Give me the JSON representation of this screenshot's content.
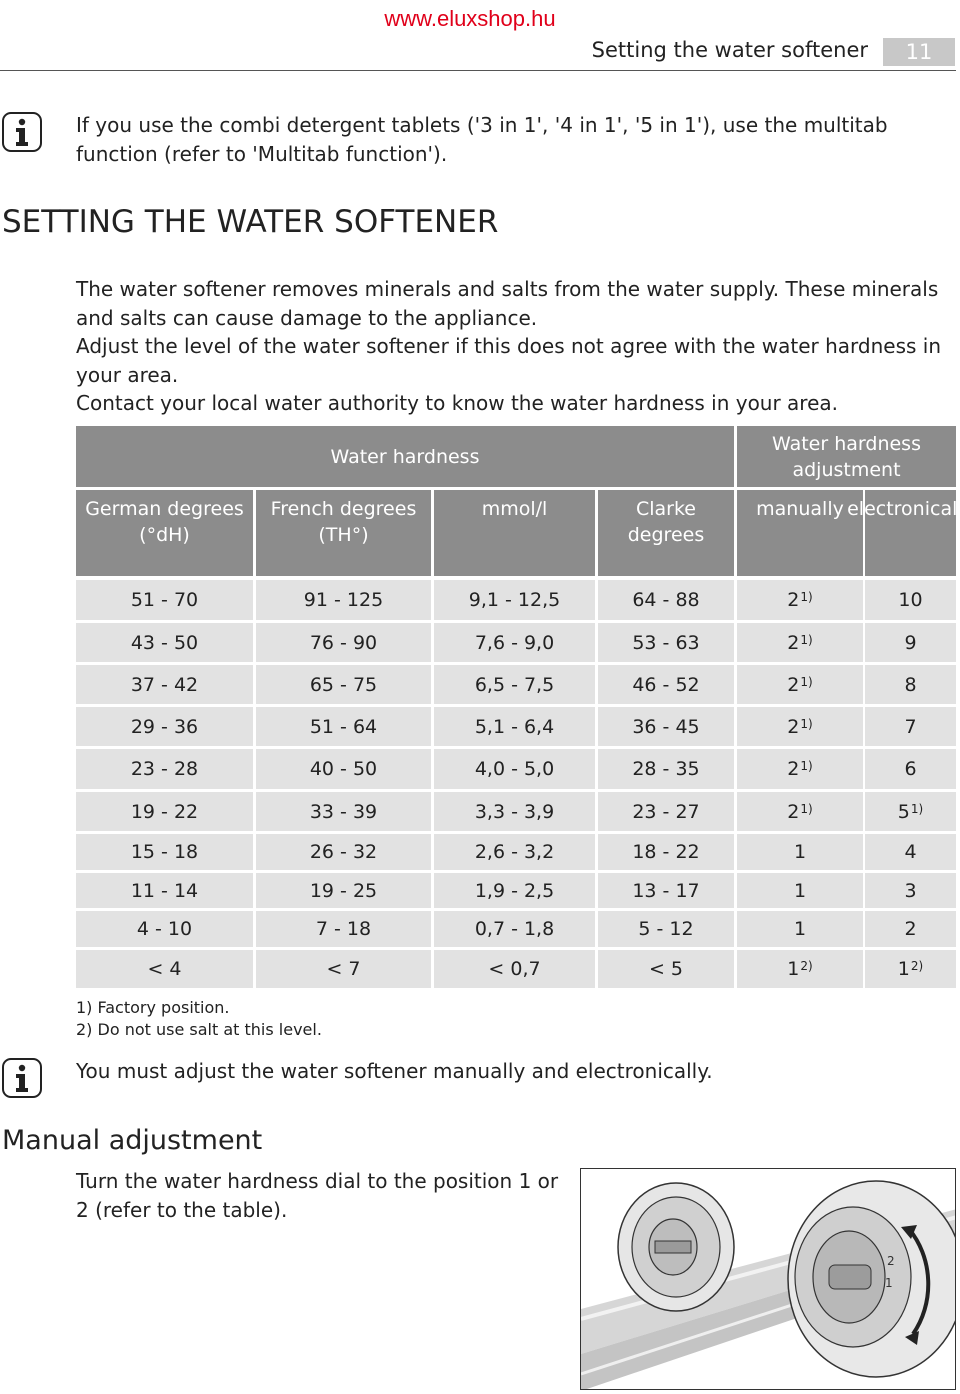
{
  "watermark": "www.eluxshop.hu",
  "header": {
    "section_title": "Setting the water softener",
    "page_number": "11"
  },
  "note1": "If you use the combi detergent tablets ('3 in 1', '4 in 1', '5 in 1'), use the multitab function (refer to 'Multitab function').",
  "heading": "SETTING THE WATER SOFTENER",
  "intro": [
    "The water softener removes minerals and salts from the water supply. These minerals and salts can cause damage to the appliance.",
    "Adjust the level of the water softener if this does not agree with the water hardness in your area.",
    "Contact your local water authority to know the water hardness in your area."
  ],
  "table": {
    "group_water_hardness": "Water hardness",
    "group_adjustment": "Water hardness adjustment",
    "columns": [
      "German degrees (°dH)",
      "French degrees (TH°)",
      "mmol/l",
      "Clarke degrees",
      "manually",
      "electronically"
    ],
    "rows": [
      {
        "german": "51 - 70",
        "french": "91 - 125",
        "mmol": "9,1 - 12,5",
        "clarke": "64 - 88",
        "manual": "2",
        "manual_note": "1)",
        "electronic": "10",
        "electronic_note": ""
      },
      {
        "german": "43 - 50",
        "french": "76 - 90",
        "mmol": "7,6 - 9,0",
        "clarke": "53 - 63",
        "manual": "2",
        "manual_note": "1)",
        "electronic": "9",
        "electronic_note": ""
      },
      {
        "german": "37 - 42",
        "french": "65 - 75",
        "mmol": "6,5 - 7,5",
        "clarke": "46 - 52",
        "manual": "2",
        "manual_note": "1)",
        "electronic": "8",
        "electronic_note": ""
      },
      {
        "german": "29 - 36",
        "french": "51 - 64",
        "mmol": "5,1 - 6,4",
        "clarke": "36 - 45",
        "manual": "2",
        "manual_note": "1)",
        "electronic": "7",
        "electronic_note": ""
      },
      {
        "german": "23 - 28",
        "french": "40 - 50",
        "mmol": "4,0 - 5,0",
        "clarke": "28 - 35",
        "manual": "2",
        "manual_note": "1)",
        "electronic": "6",
        "electronic_note": ""
      },
      {
        "german": "19 - 22",
        "french": "33 - 39",
        "mmol": "3,3 - 3,9",
        "clarke": "23 - 27",
        "manual": "2",
        "manual_note": "1)",
        "electronic": "5",
        "electronic_note": "1)"
      },
      {
        "german": "15 - 18",
        "french": "26 - 32",
        "mmol": "2,6 - 3,2",
        "clarke": "18 - 22",
        "manual": "1",
        "manual_note": "",
        "electronic": "4",
        "electronic_note": ""
      },
      {
        "german": "11 - 14",
        "french": "19 - 25",
        "mmol": "1,9 - 2,5",
        "clarke": "13 - 17",
        "manual": "1",
        "manual_note": "",
        "electronic": "3",
        "electronic_note": ""
      },
      {
        "german": "4 - 10",
        "french": "7 - 18",
        "mmol": "0,7 - 1,8",
        "clarke": "5 - 12",
        "manual": "1",
        "manual_note": "",
        "electronic": "2",
        "electronic_note": ""
      },
      {
        "german": "< 4",
        "french": "< 7",
        "mmol": "< 0,7",
        "clarke": "< 5",
        "manual": "1",
        "manual_note": "2)",
        "electronic": "1",
        "electronic_note": "2)"
      }
    ]
  },
  "footnotes": [
    "1) Factory position.",
    "2) Do not use salt at this level."
  ],
  "note2": "You must adjust the water softener manually and electronically.",
  "subheading": "Manual adjustment",
  "manual_text": "Turn the water hardness dial to the position 1 or 2 (refer to the table).",
  "illustration": {
    "dial_labels": [
      "2",
      "1"
    ]
  },
  "colors": {
    "watermark": "#e0001a",
    "table_header": "#8c8c8c",
    "table_row": "#e2e2e2"
  }
}
